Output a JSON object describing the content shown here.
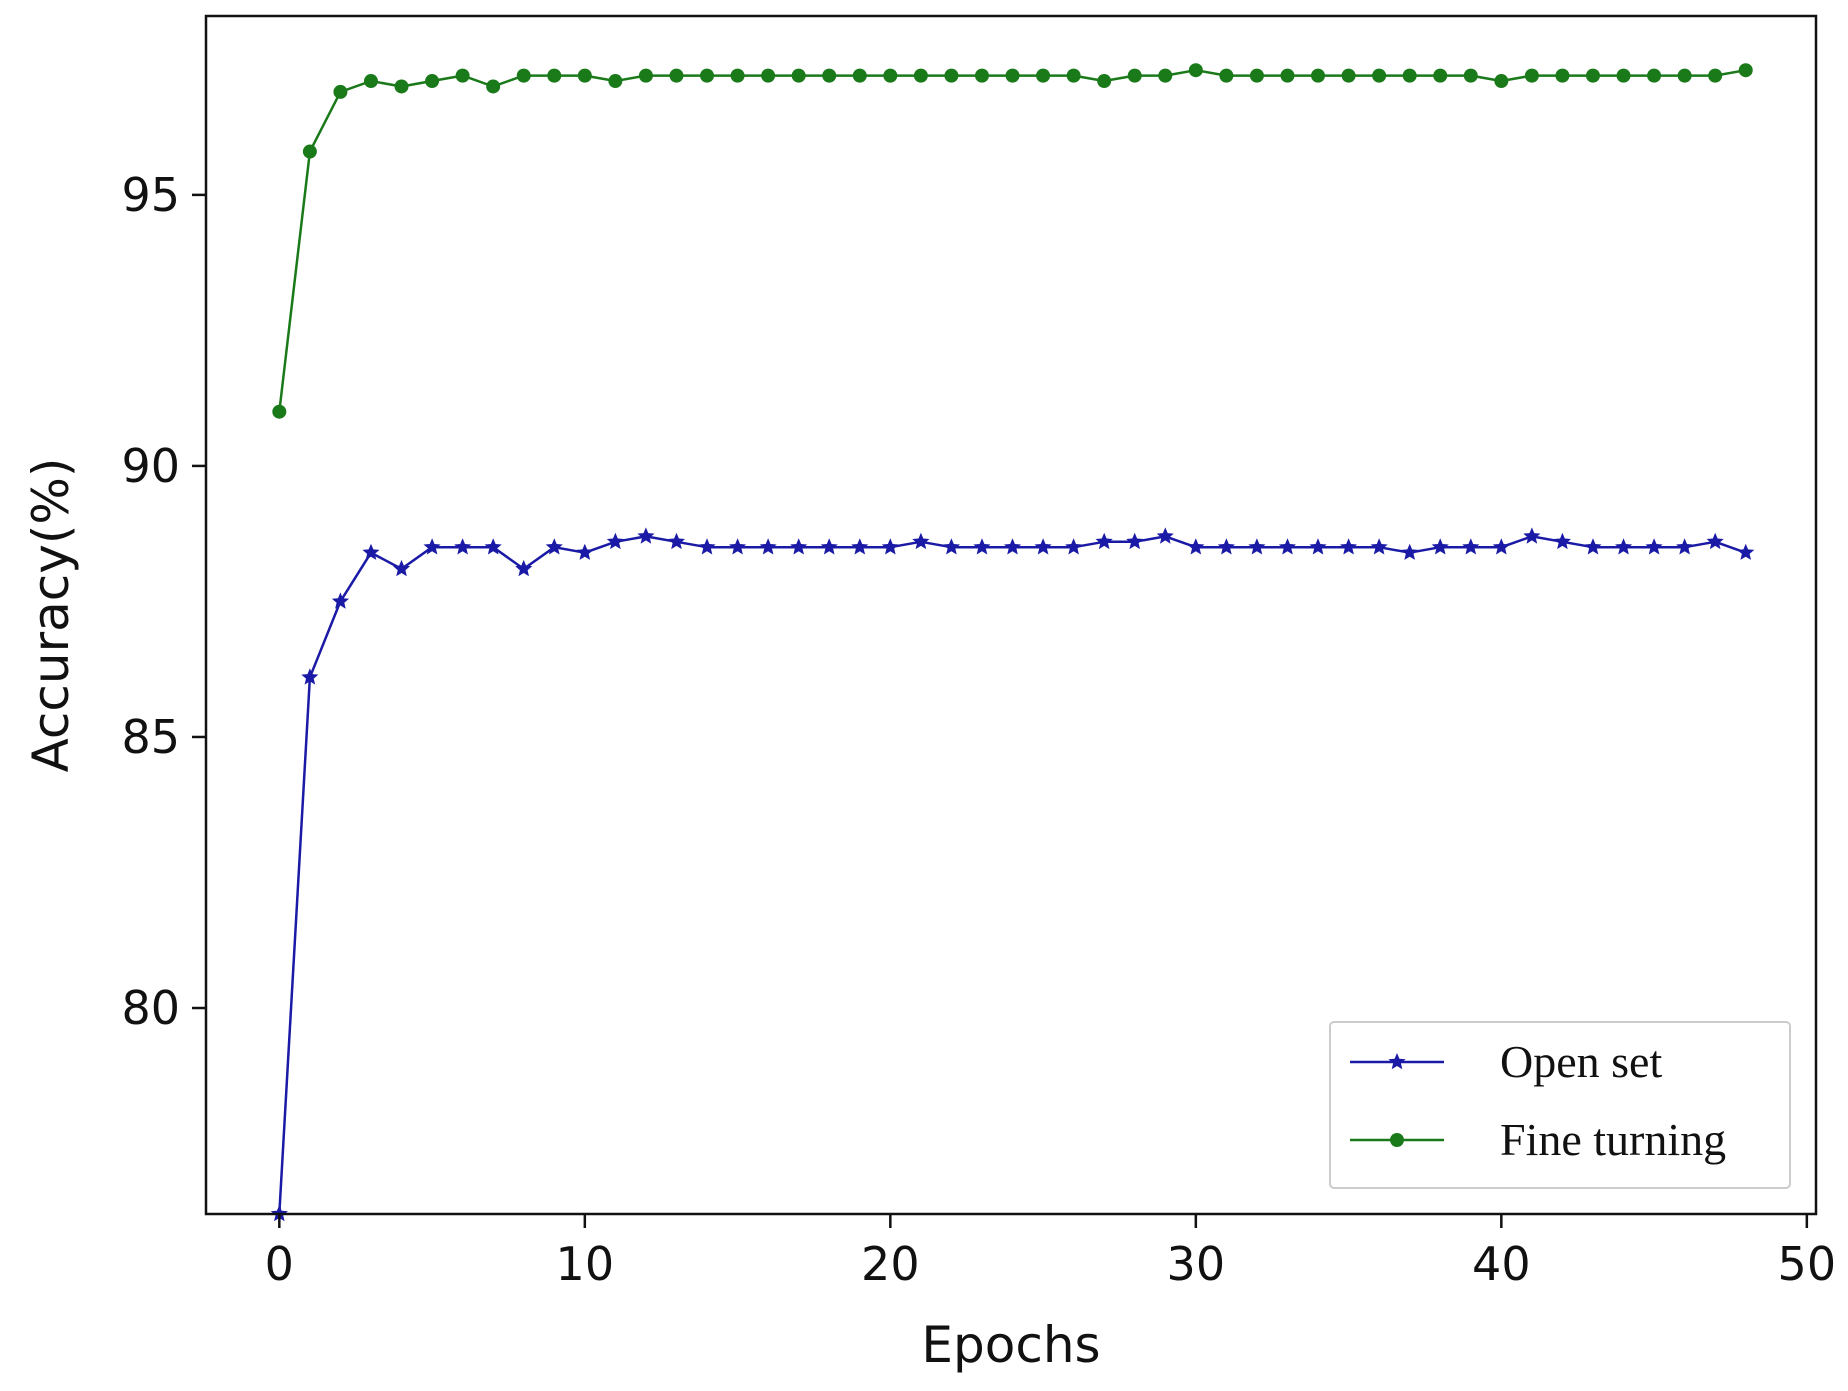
{
  "chart_data": {
    "type": "line",
    "title": "",
    "xlabel": "Epochs",
    "ylabel": "Accuracy(%)",
    "xlim": [
      -2.4,
      50.3
    ],
    "ylim": [
      76.2,
      98.3
    ],
    "xticks": [
      0,
      10,
      20,
      30,
      40,
      50
    ],
    "yticks": [
      80,
      85,
      90,
      95
    ],
    "grid": false,
    "legend_position": "lower-right",
    "x": [
      0,
      1,
      2,
      3,
      4,
      5,
      6,
      7,
      8,
      9,
      10,
      11,
      12,
      13,
      14,
      15,
      16,
      17,
      18,
      19,
      20,
      21,
      22,
      23,
      24,
      25,
      26,
      27,
      28,
      29,
      30,
      31,
      32,
      33,
      34,
      35,
      36,
      37,
      38,
      39,
      40,
      41,
      42,
      43,
      44,
      45,
      46,
      47,
      48
    ],
    "series": [
      {
        "name": "Open set",
        "color": "#1a1aa6",
        "marker": "star",
        "values": [
          76.2,
          86.1,
          87.5,
          88.4,
          88.1,
          88.5,
          88.5,
          88.5,
          88.1,
          88.5,
          88.4,
          88.6,
          88.7,
          88.6,
          88.5,
          88.5,
          88.5,
          88.5,
          88.5,
          88.5,
          88.5,
          88.6,
          88.5,
          88.5,
          88.5,
          88.5,
          88.5,
          88.6,
          88.6,
          88.7,
          88.5,
          88.5,
          88.5,
          88.5,
          88.5,
          88.5,
          88.5,
          88.4,
          88.5,
          88.5,
          88.5,
          88.7,
          88.6,
          88.5,
          88.5,
          88.5,
          88.5,
          88.6,
          88.4
        ]
      },
      {
        "name": "Fine turning",
        "color": "#1a7a1a",
        "marker": "circle",
        "values": [
          91.0,
          95.8,
          96.9,
          97.1,
          97.0,
          97.1,
          97.2,
          97.0,
          97.2,
          97.2,
          97.2,
          97.1,
          97.2,
          97.2,
          97.2,
          97.2,
          97.2,
          97.2,
          97.2,
          97.2,
          97.2,
          97.2,
          97.2,
          97.2,
          97.2,
          97.2,
          97.2,
          97.1,
          97.2,
          97.2,
          97.3,
          97.2,
          97.2,
          97.2,
          97.2,
          97.2,
          97.2,
          97.2,
          97.2,
          97.2,
          97.1,
          97.2,
          97.2,
          97.2,
          97.2,
          97.2,
          97.2,
          97.2,
          97.3
        ]
      }
    ]
  }
}
